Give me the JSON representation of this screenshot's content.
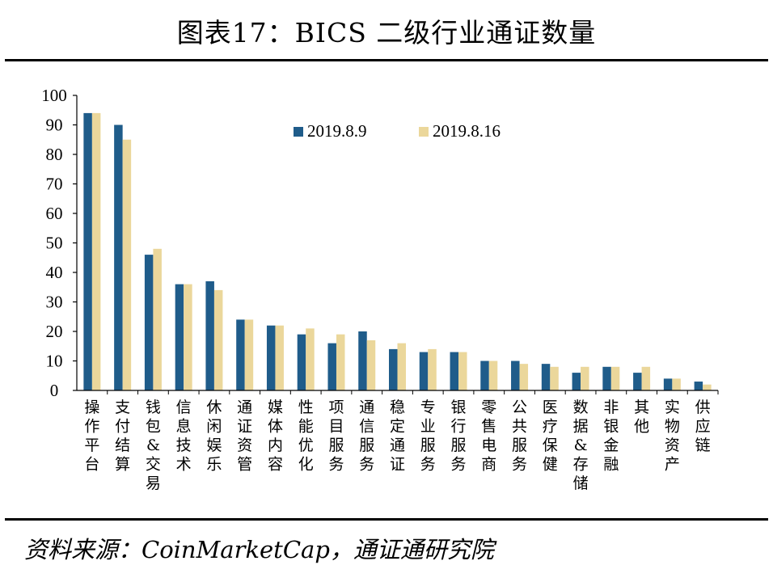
{
  "title": "图表17：BICS 二级行业通证数量",
  "source": "资料来源：CoinMarketCap，通证通研究院",
  "chart_data": {
    "type": "bar",
    "title": "图表17：BICS 二级行业通证数量",
    "xlabel": "",
    "ylabel": "",
    "ylim": [
      0,
      100
    ],
    "yticks": [
      0,
      10,
      20,
      30,
      40,
      50,
      60,
      70,
      80,
      90,
      100
    ],
    "grid": false,
    "legend_position": "top-right",
    "categories": [
      "操作平台",
      "支付结算",
      "钱包&交易",
      "信息技术",
      "休闲娱乐",
      "通证资管",
      "媒体内容",
      "性能优化",
      "项目服务",
      "通信服务",
      "稳定通证",
      "专业服务",
      "银行服务",
      "零售电商",
      "公共服务",
      "医疗保健",
      "数据&存储",
      "非银金融",
      "其他",
      "实物资产",
      "供应链"
    ],
    "series": [
      {
        "name": "2019.8.9",
        "color": "#1f5c8a",
        "values": [
          94,
          90,
          46,
          36,
          37,
          24,
          22,
          19,
          16,
          20,
          14,
          13,
          13,
          10,
          10,
          9,
          6,
          8,
          6,
          4,
          3
        ]
      },
      {
        "name": "2019.8.16",
        "color": "#ebd79b",
        "values": [
          94,
          85,
          48,
          36,
          34,
          24,
          22,
          21,
          19,
          17,
          16,
          14,
          13,
          10,
          9,
          8,
          8,
          8,
          8,
          4,
          2
        ]
      }
    ]
  }
}
